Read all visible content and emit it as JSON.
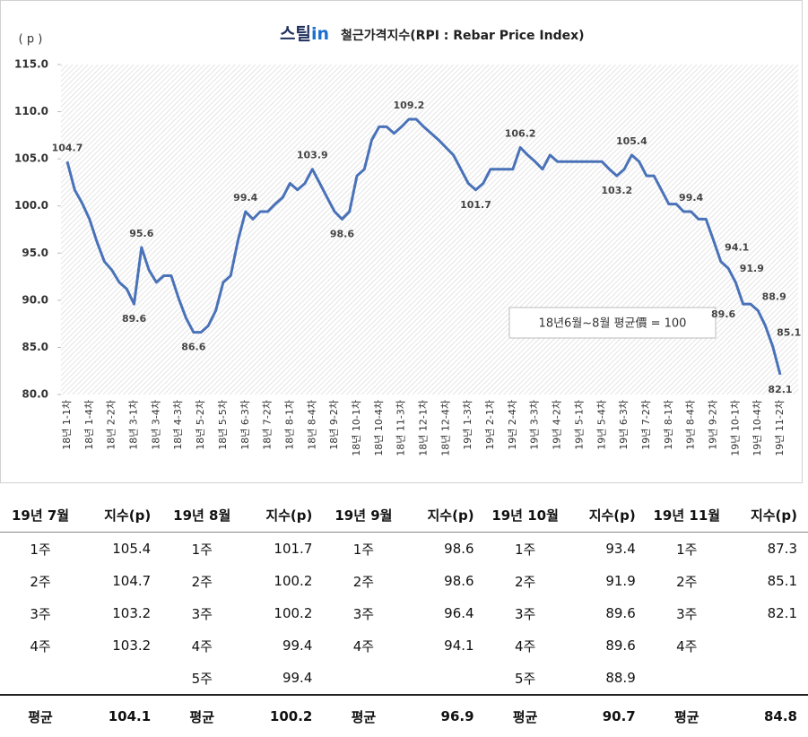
{
  "chart_data": {
    "type": "line",
    "title_logo": [
      "스틸",
      "in"
    ],
    "title": "철근가격지수(RPI : Rebar Price Index)",
    "y_label": "( p )",
    "annotation": "18년6월~8월 평균價 = 100",
    "color": "#4a72b8",
    "ylim": [
      80,
      115
    ],
    "yticks": [
      {
        "value": 80,
        "label": "80.0"
      },
      {
        "value": 85,
        "label": "85.0"
      },
      {
        "value": 90,
        "label": "90.0"
      },
      {
        "value": 95,
        "label": "95.0"
      },
      {
        "value": 100,
        "label": "100.0"
      },
      {
        "value": 105,
        "label": "105.0"
      },
      {
        "value": 110,
        "label": "110.0"
      },
      {
        "value": 115,
        "label": "115.0"
      }
    ],
    "categories": [
      "18년 1-1차",
      null,
      null,
      "18년 1-4차",
      null,
      null,
      "18년 2-2차",
      null,
      null,
      "18년 3-1차",
      null,
      null,
      "18년 3-4차",
      null,
      null,
      "18년 4-3차",
      null,
      null,
      "18년 5-2차",
      null,
      null,
      "18년 5-5차",
      null,
      null,
      "18년 6-3차",
      null,
      null,
      "18년 7-2차",
      null,
      null,
      "18년 8-1차",
      null,
      null,
      "18년 8-4차",
      null,
      null,
      "18년 9-2차",
      null,
      null,
      "18년 10-1차",
      null,
      null,
      "18년 10-4차",
      null,
      null,
      "18년 11-3차",
      null,
      null,
      "18년 12-1차",
      null,
      null,
      "18년 12-4차",
      null,
      null,
      "19년 1-3차",
      null,
      null,
      "19년 2-1차",
      null,
      null,
      "19년 2-4차",
      null,
      null,
      "19년 3-3차",
      null,
      null,
      "19년 4-2차",
      null,
      null,
      "19년 5-1차",
      null,
      null,
      "19년 5-4차",
      null,
      null,
      "19년 6-3차",
      null,
      null,
      "19년 7-2차",
      null,
      null,
      "19년 8-1차",
      null,
      null,
      "19년 8-4차",
      null,
      null,
      "19년 9-2차",
      null,
      null,
      "19년 10-1차",
      null,
      null,
      "19년 10-4차",
      null,
      null,
      "19년 11-2차"
    ],
    "values": [
      104.7,
      101.7,
      100.3,
      98.6,
      96.2,
      94.1,
      93.2,
      91.9,
      91.2,
      89.6,
      95.6,
      93.2,
      91.9,
      92.6,
      92.6,
      90.2,
      88.1,
      86.6,
      86.6,
      87.3,
      88.9,
      91.9,
      92.6,
      96.4,
      99.4,
      98.6,
      99.4,
      99.4,
      100.2,
      100.9,
      102.4,
      101.7,
      102.4,
      103.9,
      102.4,
      100.9,
      99.4,
      98.6,
      99.4,
      103.2,
      103.9,
      107.0,
      108.4,
      108.4,
      107.7,
      108.4,
      109.2,
      109.2,
      108.4,
      107.7,
      107.0,
      106.2,
      105.4,
      103.9,
      102.4,
      101.7,
      102.4,
      103.9,
      103.9,
      103.9,
      103.9,
      106.2,
      105.4,
      104.7,
      103.9,
      105.4,
      104.7,
      104.7,
      104.7,
      104.7,
      104.7,
      104.7,
      104.7,
      103.9,
      103.2,
      103.9,
      105.4,
      104.7,
      103.2,
      103.2,
      101.7,
      100.2,
      100.2,
      99.4,
      99.4,
      98.6,
      98.6,
      96.4,
      94.1,
      93.4,
      91.9,
      89.6,
      89.6,
      88.9,
      87.3,
      85.1,
      82.1
    ],
    "value_labels": [
      "104.7",
      null,
      null,
      null,
      null,
      null,
      null,
      null,
      null,
      "89.6",
      "95.6",
      null,
      null,
      null,
      null,
      null,
      null,
      "86.6",
      null,
      null,
      null,
      null,
      null,
      null,
      "99.4",
      null,
      null,
      null,
      null,
      null,
      null,
      null,
      null,
      "103.9",
      null,
      null,
      null,
      "98.6",
      null,
      null,
      null,
      null,
      null,
      null,
      null,
      null,
      "109.2",
      null,
      null,
      null,
      null,
      null,
      null,
      null,
      null,
      "101.7",
      null,
      null,
      null,
      null,
      null,
      "106.2",
      null,
      null,
      null,
      null,
      null,
      null,
      null,
      null,
      null,
      null,
      null,
      null,
      "103.2",
      null,
      "105.4",
      null,
      null,
      null,
      null,
      null,
      null,
      null,
      "99.4",
      null,
      null,
      null,
      "94.1",
      null,
      "91.9",
      "89.6",
      null,
      "88.9",
      null,
      "85.1",
      "82.1"
    ]
  },
  "table": {
    "header": [
      "19년 7월",
      "지수(p)",
      "19년 8월",
      "지수(p)",
      "19년 9월",
      "지수(p)",
      "19년 10월",
      "지수(p)",
      "19년 11월",
      "지수(p)"
    ],
    "rows": [
      [
        "1주",
        "105.4",
        "1주",
        "101.7",
        "1주",
        "98.6",
        "1주",
        "93.4",
        "1주",
        "87.3"
      ],
      [
        "2주",
        "104.7",
        "2주",
        "100.2",
        "2주",
        "98.6",
        "2주",
        "91.9",
        "2주",
        "85.1"
      ],
      [
        "3주",
        "103.2",
        "3주",
        "100.2",
        "3주",
        "96.4",
        "3주",
        "89.6",
        "3주",
        "82.1"
      ],
      [
        "4주",
        "103.2",
        "4주",
        "99.4",
        "4주",
        "94.1",
        "4주",
        "89.6",
        "4주",
        null
      ],
      [
        null,
        null,
        "5주",
        "99.4",
        null,
        null,
        "5주",
        "88.9",
        null,
        null
      ]
    ],
    "footer": [
      "평균",
      "104.1",
      "평균",
      "100.2",
      "평균",
      "96.9",
      "평균",
      "90.7",
      "평균",
      "84.8"
    ]
  }
}
